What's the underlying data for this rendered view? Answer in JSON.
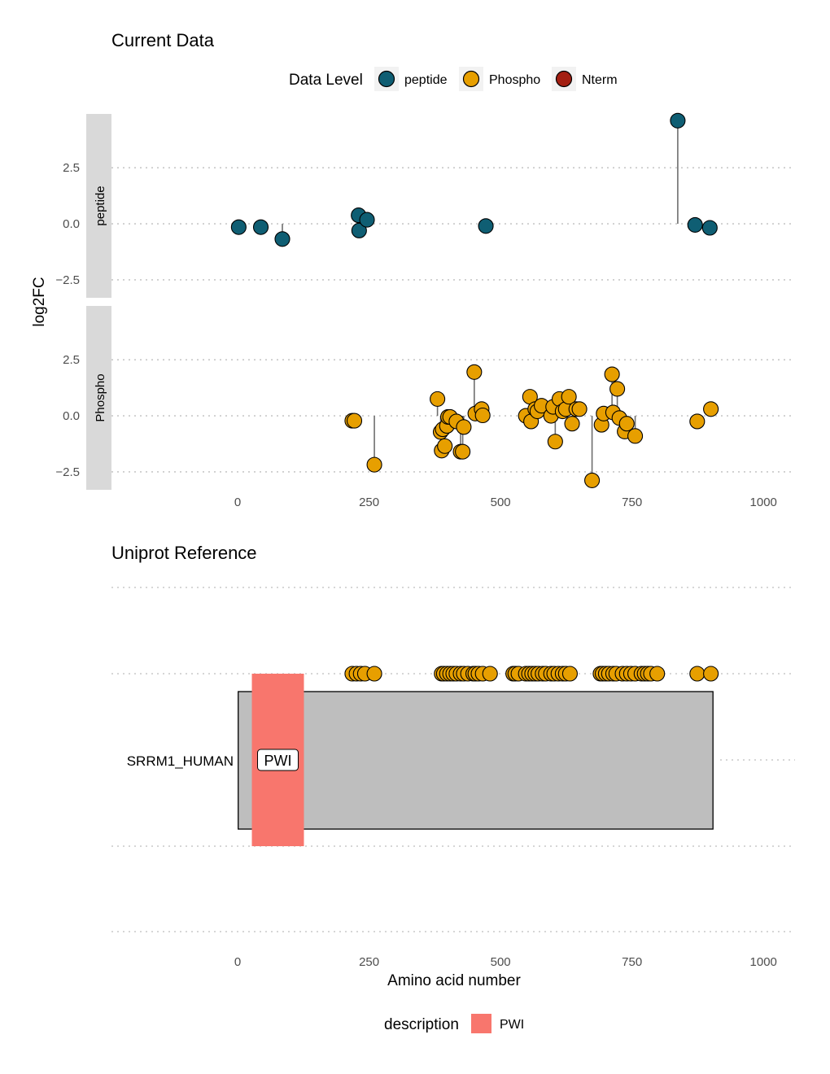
{
  "chart_data": [
    {
      "type": "scatter",
      "title": "Current Data",
      "ylabel": "log2FC",
      "legend": {
        "title": "Data Level",
        "position": "top",
        "items": [
          {
            "label": "peptide",
            "color": "#0f5e73"
          },
          {
            "label": "Phospho",
            "color": "#e79f00"
          },
          {
            "label": "Nterm",
            "color": "#a31f12"
          }
        ]
      },
      "xlim": [
        -240,
        1060
      ],
      "x_ticks": [
        0,
        250,
        500,
        750,
        1000
      ],
      "x_tick_labels": [
        "0",
        "250",
        "500",
        "750",
        "1000"
      ],
      "grid": "horizontal dotted",
      "panels": [
        {
          "strip": "peptide",
          "color": "#0f5e73",
          "ylim": [
            -3.3,
            4.9
          ],
          "y_ticks": [
            -2.5,
            0.0,
            2.5
          ],
          "y_tick_labels": [
            "−2.5",
            "0.0",
            "2.5"
          ],
          "points": [
            {
              "x": 2,
              "y": -0.15
            },
            {
              "x": 44,
              "y": -0.15
            },
            {
              "x": 85,
              "y": -0.68
            },
            {
              "x": 230,
              "y": 0.38
            },
            {
              "x": 231,
              "y": -0.3
            },
            {
              "x": 246,
              "y": 0.18
            },
            {
              "x": 472,
              "y": -0.1
            },
            {
              "x": 837,
              "y": 4.6
            },
            {
              "x": 870,
              "y": -0.05
            },
            {
              "x": 898,
              "y": -0.18
            }
          ]
        },
        {
          "strip": "Phospho",
          "color": "#e79f00",
          "ylim": [
            -3.3,
            4.9
          ],
          "y_ticks": [
            -2.5,
            0.0,
            2.5
          ],
          "y_tick_labels": [
            "−2.5",
            "0.0",
            "2.5"
          ],
          "points": [
            {
              "x": 218,
              "y": -0.22
            },
            {
              "x": 222,
              "y": -0.22
            },
            {
              "x": 260,
              "y": -2.18
            },
            {
              "x": 380,
              "y": 0.75
            },
            {
              "x": 386,
              "y": -0.72
            },
            {
              "x": 388,
              "y": -1.55
            },
            {
              "x": 390,
              "y": -0.6
            },
            {
              "x": 394,
              "y": -1.35
            },
            {
              "x": 398,
              "y": -0.45
            },
            {
              "x": 400,
              "y": -0.05
            },
            {
              "x": 404,
              "y": -0.05
            },
            {
              "x": 416,
              "y": -0.25
            },
            {
              "x": 424,
              "y": -1.6
            },
            {
              "x": 428,
              "y": -1.6
            },
            {
              "x": 430,
              "y": -0.5
            },
            {
              "x": 450,
              "y": 1.95
            },
            {
              "x": 452,
              "y": 0.1
            },
            {
              "x": 464,
              "y": 0.3
            },
            {
              "x": 466,
              "y": 0.02
            },
            {
              "x": 548,
              "y": 0.0
            },
            {
              "x": 556,
              "y": 0.85
            },
            {
              "x": 558,
              "y": -0.25
            },
            {
              "x": 566,
              "y": 0.3
            },
            {
              "x": 570,
              "y": 0.2
            },
            {
              "x": 578,
              "y": 0.45
            },
            {
              "x": 596,
              "y": 0.0
            },
            {
              "x": 600,
              "y": 0.4
            },
            {
              "x": 604,
              "y": -1.15
            },
            {
              "x": 612,
              "y": 0.75
            },
            {
              "x": 618,
              "y": 0.2
            },
            {
              "x": 624,
              "y": 0.3
            },
            {
              "x": 630,
              "y": 0.85
            },
            {
              "x": 636,
              "y": -0.35
            },
            {
              "x": 644,
              "y": 0.3
            },
            {
              "x": 650,
              "y": 0.3
            },
            {
              "x": 674,
              "y": -2.88
            },
            {
              "x": 692,
              "y": -0.4
            },
            {
              "x": 696,
              "y": 0.1
            },
            {
              "x": 712,
              "y": 1.85
            },
            {
              "x": 714,
              "y": 0.15
            },
            {
              "x": 722,
              "y": 1.2
            },
            {
              "x": 726,
              "y": -0.1
            },
            {
              "x": 736,
              "y": -0.7
            },
            {
              "x": 740,
              "y": -0.35
            },
            {
              "x": 756,
              "y": -0.9
            },
            {
              "x": 874,
              "y": -0.25
            },
            {
              "x": 900,
              "y": 0.3
            }
          ]
        }
      ]
    },
    {
      "type": "bar",
      "title": "Uniprot Reference",
      "xlabel": "Amino acid number",
      "xlim": [
        -240,
        1060
      ],
      "x_ticks": [
        0,
        250,
        500,
        750,
        1000
      ],
      "x_tick_labels": [
        "0",
        "250",
        "500",
        "750",
        "1000"
      ],
      "protein": {
        "label": "SRRM1_HUMAN",
        "start": 1,
        "end": 904,
        "color": "#bebebe"
      },
      "domains": [
        {
          "label": "PWI",
          "start": 27,
          "end": 126,
          "color": "#f8766d"
        }
      ],
      "site_color": "#e79f00",
      "sites_x": [
        218,
        226,
        234,
        242,
        260,
        388,
        392,
        398,
        404,
        410,
        416,
        424,
        430,
        438,
        448,
        452,
        458,
        466,
        480,
        524,
        528,
        534,
        548,
        554,
        560,
        566,
        572,
        580,
        586,
        596,
        602,
        610,
        618,
        624,
        632,
        690,
        694,
        700,
        706,
        714,
        720,
        732,
        740,
        748,
        756,
        768,
        774,
        780,
        786,
        798,
        874,
        900
      ],
      "legend": {
        "title": "description",
        "items": [
          {
            "label": "PWI",
            "color": "#f8766d"
          }
        ]
      }
    }
  ]
}
